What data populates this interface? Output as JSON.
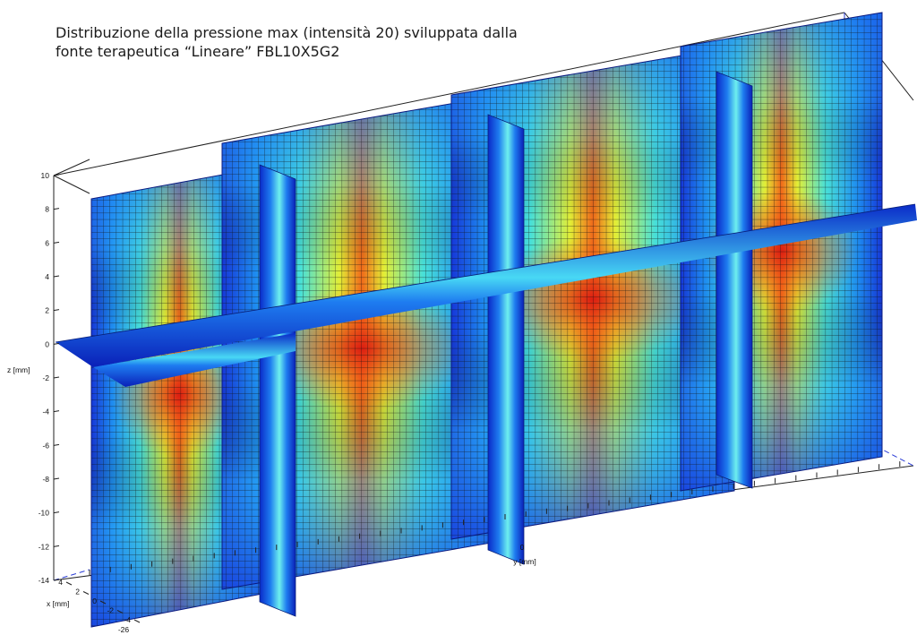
{
  "title_line1": "Distribuzione della pressione max (intensità 20) sviluppata dalla",
  "title_line2": "fonte terapeutica “Lineare” FBL10X5G2",
  "chart_data": {
    "type": "heatmap",
    "view": "3d",
    "colormap": "jet",
    "title": "Distribuzione della pressione max (intensità 20) sviluppata dalla fonte terapeutica “Lineare” FBL10X5G2",
    "axes": {
      "z": {
        "label": "z [mm]",
        "range": [
          -14,
          10
        ],
        "ticks": [
          "10",
          "8",
          "6",
          "4",
          "2",
          "0",
          "-2",
          "-4",
          "-6",
          "-8",
          "-10",
          "-12",
          "-14"
        ]
      },
      "y": {
        "label": "y [mm]",
        "ticks": [
          "0"
        ]
      },
      "x": {
        "label": "x [mm]",
        "range": [
          -4,
          4
        ],
        "ticks": [
          "4",
          "2",
          "0",
          "-2",
          "-4"
        ]
      },
      "corner_tick": "-26"
    },
    "grid": true,
    "colors": {
      "low": "#00008f",
      "mid_low": "#00b4ff",
      "mid": "#ffff00",
      "high": "#ff0000",
      "grid": "#000000"
    },
    "slices": [
      {
        "plane": "x-z",
        "position": "back"
      },
      {
        "plane": "y-z",
        "position": "element 1"
      },
      {
        "plane": "y-z",
        "position": "element 2"
      },
      {
        "plane": "y-z",
        "position": "element 3"
      },
      {
        "plane": "y-z",
        "position": "element 4"
      },
      {
        "plane": "x-y",
        "position": "z = 0"
      }
    ]
  }
}
